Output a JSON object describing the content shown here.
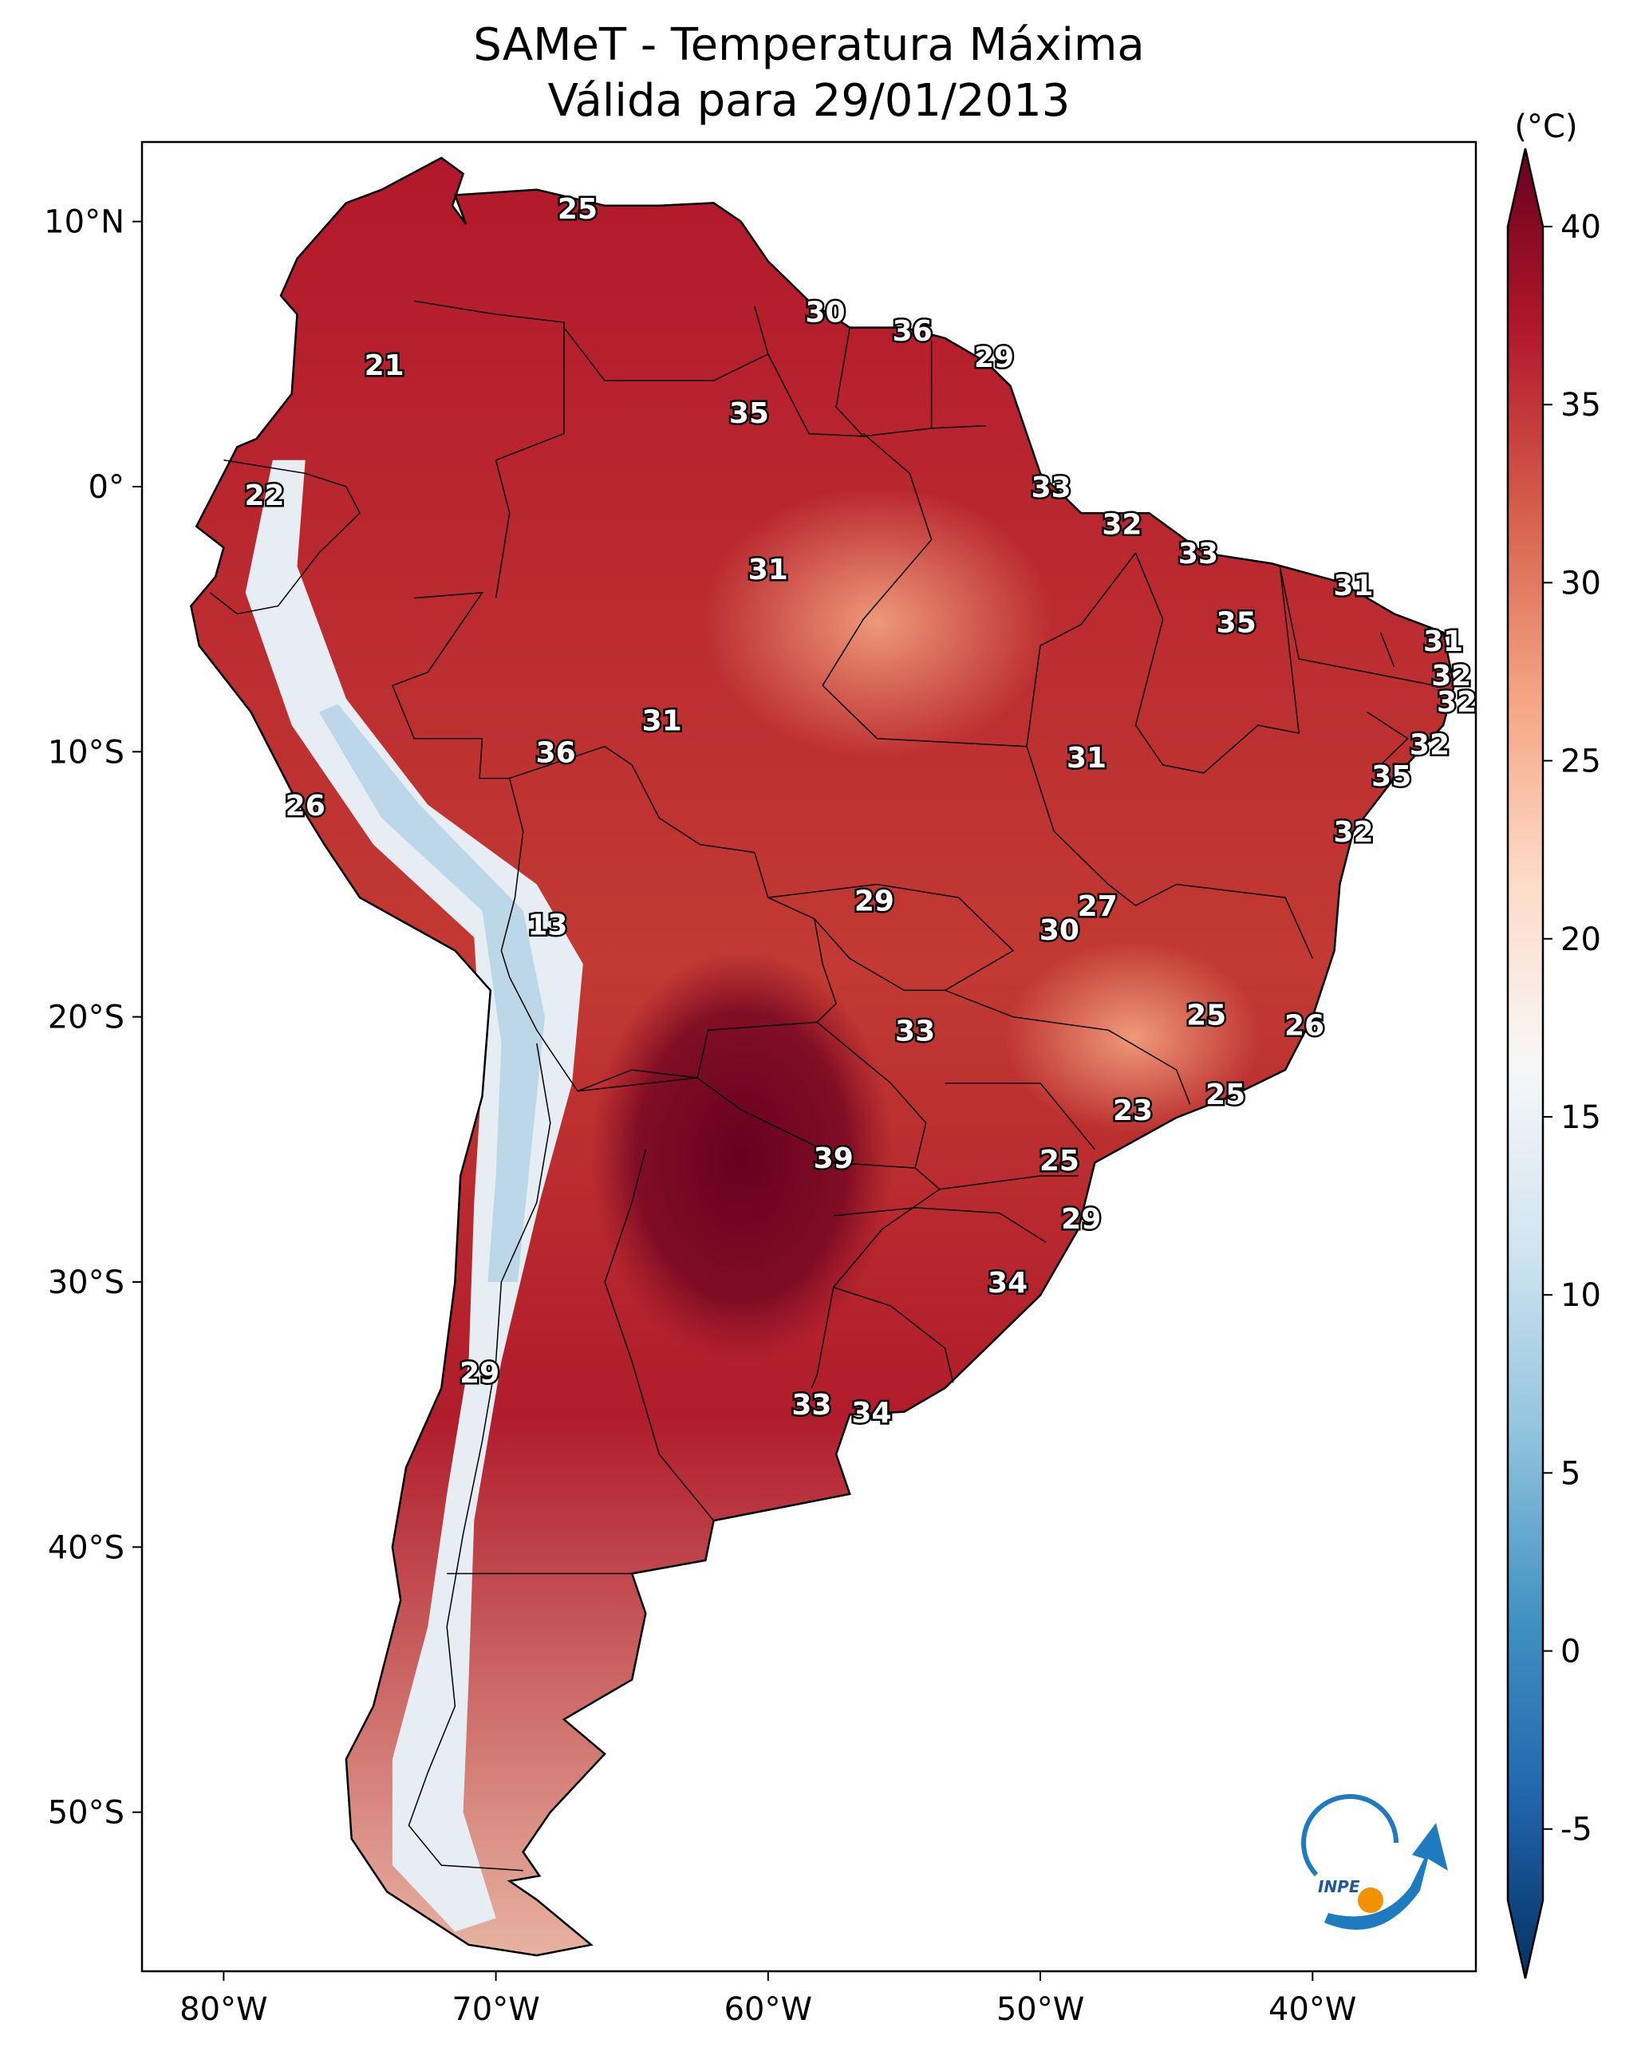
{
  "title_line1": "SAMeT - Temperatura Máxima",
  "title_line2": "Válida para 29/01/2013",
  "colorbar": {
    "unit": "(°C)",
    "ticks": [
      "-5",
      "0",
      "5",
      "10",
      "15",
      "20",
      "25",
      "30",
      "35",
      "40"
    ],
    "colors": [
      "#053061",
      "#2166ac",
      "#4393c3",
      "#92c5de",
      "#d1e5f0",
      "#f7f7f7",
      "#fddbc7",
      "#f4a582",
      "#d6604d",
      "#b2182b",
      "#67001f"
    ]
  },
  "axes": {
    "lon_labels": [
      "80°W",
      "70°W",
      "60°W",
      "50°W",
      "40°W"
    ],
    "lat_labels": [
      "10°N",
      "0°",
      "10°S",
      "20°S",
      "30°S",
      "40°S",
      "50°S"
    ]
  },
  "logo_text": "INPE",
  "city_temperatures": [
    {
      "value": "25",
      "lon": -67.0,
      "lat": 10.5
    },
    {
      "value": "30",
      "lon": -57.9,
      "lat": 6.6
    },
    {
      "value": "36",
      "lon": -54.7,
      "lat": 5.9
    },
    {
      "value": "29",
      "lon": -51.7,
      "lat": 4.9
    },
    {
      "value": "21",
      "lon": -74.1,
      "lat": 4.6
    },
    {
      "value": "35",
      "lon": -60.7,
      "lat": 2.8
    },
    {
      "value": "33",
      "lon": -49.6,
      "lat": 0.0
    },
    {
      "value": "22",
      "lon": -78.5,
      "lat": -0.3
    },
    {
      "value": "32",
      "lon": -47.0,
      "lat": -1.4
    },
    {
      "value": "33",
      "lon": -44.2,
      "lat": -2.5
    },
    {
      "value": "31",
      "lon": -60.0,
      "lat": -3.1
    },
    {
      "value": "31",
      "lon": -38.5,
      "lat": -3.7
    },
    {
      "value": "35",
      "lon": -42.8,
      "lat": -5.1
    },
    {
      "value": "31",
      "lon": -35.2,
      "lat": -5.8
    },
    {
      "value": "32",
      "lon": -34.9,
      "lat": -7.1
    },
    {
      "value": "32",
      "lon": -34.7,
      "lat": -8.1
    },
    {
      "value": "31",
      "lon": -63.9,
      "lat": -8.8
    },
    {
      "value": "32",
      "lon": -35.7,
      "lat": -9.7
    },
    {
      "value": "36",
      "lon": -67.8,
      "lat": -10.0
    },
    {
      "value": "31",
      "lon": -48.3,
      "lat": -10.2
    },
    {
      "value": "35",
      "lon": -37.1,
      "lat": -10.9
    },
    {
      "value": "26",
      "lon": -77.0,
      "lat": -12.0
    },
    {
      "value": "32",
      "lon": -38.5,
      "lat": -13.0
    },
    {
      "value": "29",
      "lon": -56.1,
      "lat": -15.6
    },
    {
      "value": "27",
      "lon": -47.9,
      "lat": -15.8
    },
    {
      "value": "13",
      "lon": -68.1,
      "lat": -16.5
    },
    {
      "value": "30",
      "lon": -49.3,
      "lat": -16.7
    },
    {
      "value": "25",
      "lon": -43.9,
      "lat": -19.9
    },
    {
      "value": "26",
      "lon": -40.3,
      "lat": -20.3
    },
    {
      "value": "33",
      "lon": -54.6,
      "lat": -20.5
    },
    {
      "value": "25",
      "lon": -43.2,
      "lat": -22.9
    },
    {
      "value": "23",
      "lon": -46.6,
      "lat": -23.5
    },
    {
      "value": "39",
      "lon": -57.6,
      "lat": -25.3
    },
    {
      "value": "25",
      "lon": -49.3,
      "lat": -25.4
    },
    {
      "value": "29",
      "lon": -48.5,
      "lat": -27.6
    },
    {
      "value": "34",
      "lon": -51.2,
      "lat": -30.0
    },
    {
      "value": "29",
      "lon": -70.6,
      "lat": -33.4
    },
    {
      "value": "33",
      "lon": -58.4,
      "lat": -34.6
    },
    {
      "value": "34",
      "lon": -56.2,
      "lat": -34.9
    }
  ]
}
